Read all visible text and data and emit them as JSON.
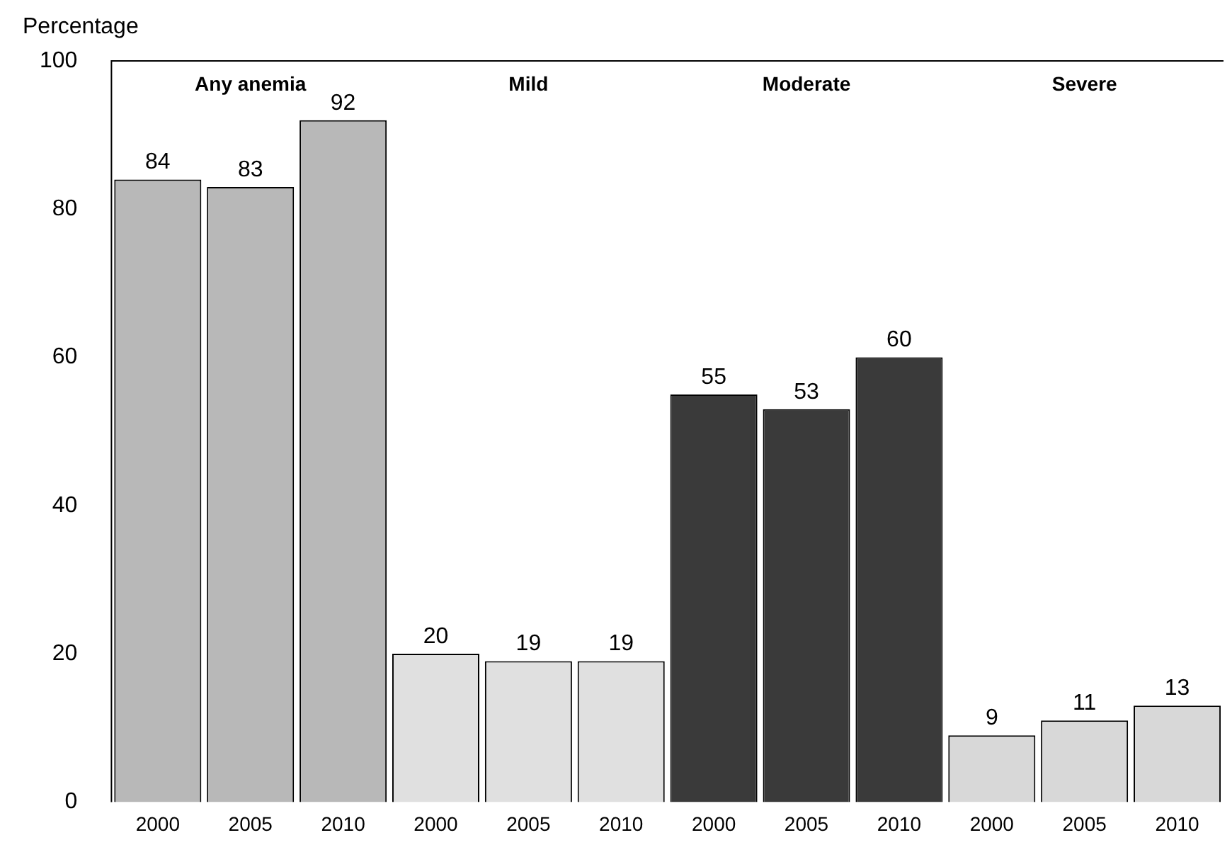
{
  "chart_data": {
    "type": "bar",
    "ylabel": "Percentage",
    "categories": [
      "2000",
      "2005",
      "2010",
      "2000",
      "2005",
      "2010",
      "2000",
      "2005",
      "2010",
      "2000",
      "2005",
      "2010"
    ],
    "values": [
      84,
      83,
      92,
      20,
      19,
      19,
      55,
      53,
      60,
      9,
      11,
      13
    ],
    "colors": [
      "#b8b8b8",
      "#b8b8b8",
      "#b8b8b8",
      "#e0e0e0",
      "#e0e0e0",
      "#e0e0e0",
      "#3a3a3a",
      "#3a3a3a",
      "#3a3a3a",
      "#d8d8d8",
      "#d8d8d8",
      "#d8d8d8"
    ],
    "annotations": [
      "Any anemia",
      "Mild",
      "Moderate",
      "Severe"
    ],
    "ylim": [
      0,
      100
    ],
    "yticks": [
      0,
      20,
      40,
      60,
      80,
      100
    ],
    "data_labels": true,
    "grid": false,
    "legend": false
  }
}
